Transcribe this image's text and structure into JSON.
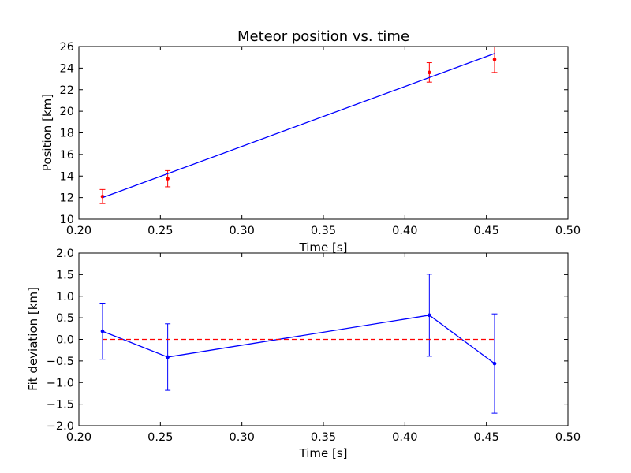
{
  "chart_data": [
    {
      "type": "scatter",
      "title": "Meteor position vs. time",
      "xlabel": "Time [s]",
      "ylabel": "Position [km]",
      "xlim": [
        0.2,
        0.5
      ],
      "ylim": [
        10,
        26
      ],
      "xticks": [
        "0.20",
        "0.25",
        "0.30",
        "0.35",
        "0.40",
        "0.45",
        "0.50"
      ],
      "yticks": [
        "10",
        "12",
        "14",
        "16",
        "18",
        "20",
        "22",
        "24",
        "26"
      ],
      "grid": false,
      "series": [
        {
          "kind": "errorbar",
          "color": "#ff0000",
          "x": [
            0.2145,
            0.2545,
            0.415,
            0.455
          ],
          "y": [
            12.1,
            13.75,
            23.6,
            24.8
          ],
          "yerr": [
            0.65,
            0.75,
            0.9,
            1.2
          ]
        },
        {
          "kind": "line",
          "color": "#0000ff",
          "x": [
            0.2145,
            0.455
          ],
          "y": [
            12.0,
            25.35
          ]
        }
      ]
    },
    {
      "type": "line",
      "title": "",
      "xlabel": "Time [s]",
      "ylabel": "Fit deviation [km]",
      "xlim": [
        0.2,
        0.5
      ],
      "ylim": [
        -2.0,
        2.0
      ],
      "xticks": [
        "0.20",
        "0.25",
        "0.30",
        "0.35",
        "0.40",
        "0.45",
        "0.50"
      ],
      "yticks": [
        "2.0",
        "1.5",
        "1.0",
        "0.5",
        "0.0",
        "−0.5",
        "−1.0",
        "−1.5",
        "−2.0"
      ],
      "grid": false,
      "series": [
        {
          "kind": "errorbar-line",
          "color": "#0000ff",
          "x": [
            0.2145,
            0.2545,
            0.415,
            0.455
          ],
          "y": [
            0.19,
            -0.41,
            0.56,
            -0.56
          ],
          "yerr": [
            0.65,
            0.77,
            0.95,
            1.15
          ]
        },
        {
          "kind": "reference-line",
          "color": "#ff0000",
          "style": "dashed",
          "x": [
            0.2145,
            0.455
          ],
          "y": [
            0.0,
            0.0
          ]
        }
      ]
    }
  ]
}
